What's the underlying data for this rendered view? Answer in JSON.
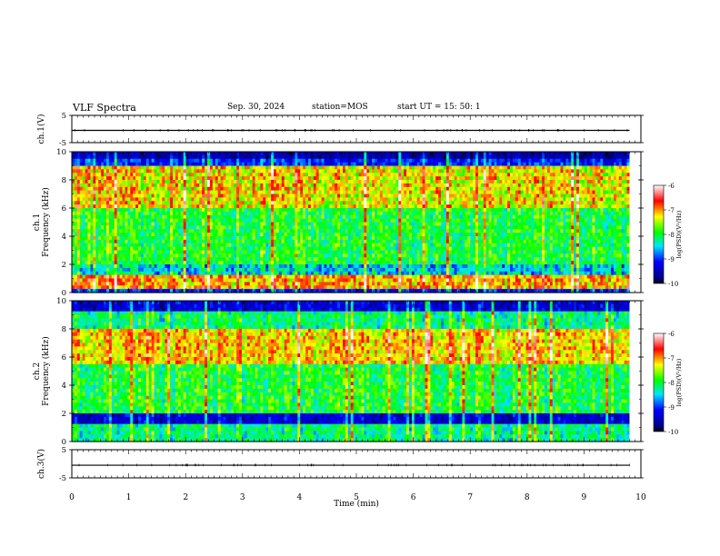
{
  "header": {
    "title": "VLF Spectra",
    "date": "Sep. 30, 2024",
    "station": "station=MOS",
    "start": "start UT =  15: 50: 1"
  },
  "chart_data": [
    {
      "type": "line",
      "panel": "ch1-waveform",
      "ylabel": "ch.1(V)",
      "ylim": [
        -5,
        5
      ],
      "yticks": [
        "5",
        "-5"
      ],
      "xlim": [
        0,
        10
      ],
      "series": [
        {
          "values": [
            -0.5,
            -0.5
          ]
        }
      ],
      "x": [
        0,
        9.8
      ]
    },
    {
      "type": "heatmap",
      "panel": "ch1-spectrogram",
      "ylabel": "ch.1\nFrequency (kHz)",
      "ylim": [
        0,
        10
      ],
      "yticks": [
        "0",
        "2",
        "4",
        "6",
        "8",
        "10"
      ],
      "xlim": [
        0,
        10
      ],
      "data_xmax": 9.8,
      "colorbar": {
        "label": "log(PSD)(V²/Hz)",
        "range": [
          -10,
          -6
        ],
        "ticks": [
          "-6",
          "-7",
          "-8",
          "-9",
          "-10"
        ]
      },
      "features": {
        "intense_band_khz": [
          6,
          9
        ],
        "low_band_khz": [
          0.3,
          1.2
        ],
        "dark_band_top_khz": [
          9.5,
          10
        ]
      }
    },
    {
      "type": "heatmap",
      "panel": "ch2-spectrogram",
      "ylabel": "ch.2\nFrequency (kHz)",
      "ylim": [
        0,
        10
      ],
      "yticks": [
        "0",
        "2",
        "4",
        "6",
        "8",
        "10"
      ],
      "xlim": [
        0,
        10
      ],
      "data_xmax": 9.8,
      "colorbar": {
        "label": "log(PSD)(V²/Hz)",
        "range": [
          -10,
          -6
        ],
        "ticks": [
          "-6",
          "-7",
          "-8",
          "-9",
          "-10"
        ]
      },
      "features": {
        "intense_band_khz": [
          5.5,
          8
        ],
        "dark_band_khz": [
          1.2,
          2
        ],
        "dark_band_top_khz": [
          9.3,
          10
        ]
      }
    },
    {
      "type": "line",
      "panel": "ch3-waveform",
      "ylabel": "ch.3(V)",
      "ylim": [
        -5,
        5
      ],
      "yticks": [
        "5",
        "-5"
      ],
      "xlim": [
        0,
        10
      ],
      "series": [
        {
          "values": [
            -0.5,
            -0.5
          ]
        }
      ],
      "x": [
        0,
        9.8
      ]
    }
  ],
  "xaxis": {
    "label": "Time (min)",
    "ticks": [
      "0",
      "1",
      "2",
      "3",
      "4",
      "5",
      "6",
      "7",
      "8",
      "9",
      "10"
    ]
  }
}
